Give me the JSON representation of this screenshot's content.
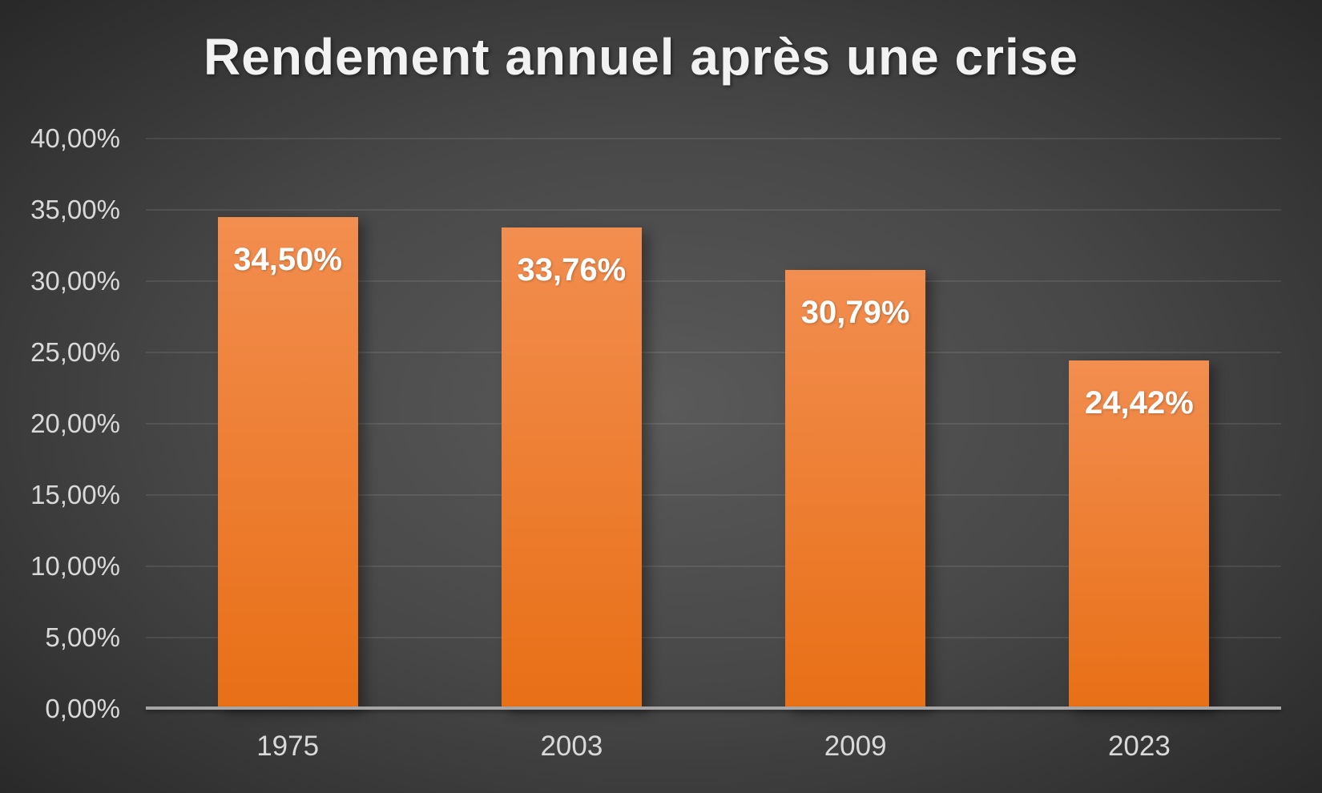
{
  "title": "Rendement annuel après une crise",
  "chart_data": {
    "type": "bar",
    "title": "Rendement annuel après une crise",
    "categories": [
      "1975",
      "2003",
      "2009",
      "2023"
    ],
    "values": [
      34.5,
      33.76,
      30.79,
      24.42
    ],
    "value_labels": [
      "34,50%",
      "33,76%",
      "30,79%",
      "24,42%"
    ],
    "xlabel": "",
    "ylabel": "",
    "ylim": [
      0,
      40
    ],
    "ytick_step": 5,
    "ytick_labels": [
      "0,00%",
      "5,00%",
      "10,00%",
      "15,00%",
      "20,00%",
      "25,00%",
      "30,00%",
      "35,00%",
      "40,00%"
    ],
    "grid": true,
    "legend": false,
    "colors": {
      "bar_gradient_top": "#f28e50",
      "bar_gradient_bottom": "#e86f16",
      "value_label": "#ffffff",
      "axis_line": "#a6a6a6",
      "tick_label": "#d9d9d9",
      "title": "#f2f2f2",
      "gridline": "rgba(255,255,255,0.09)"
    }
  }
}
